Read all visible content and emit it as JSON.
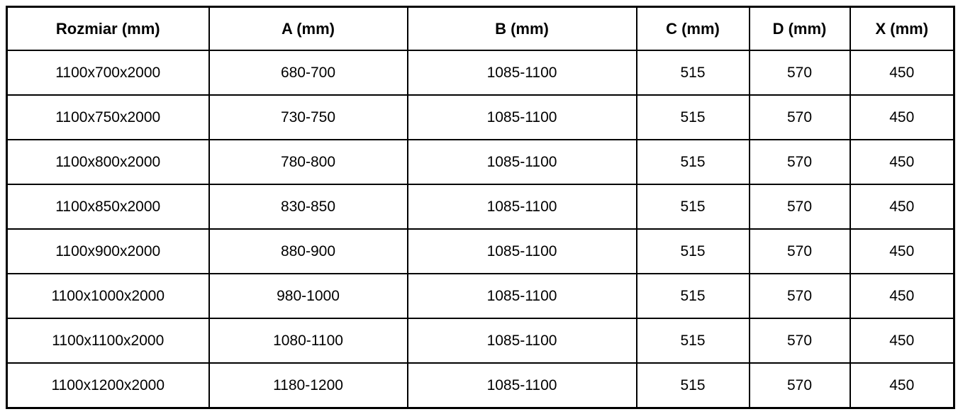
{
  "table": {
    "headers": [
      "Rozmiar (mm)",
      "A (mm)",
      "B (mm)",
      "C (mm)",
      "D (mm)",
      "X (mm)"
    ],
    "rows": [
      [
        "1100x700x2000",
        "680-700",
        "1085-1100",
        "515",
        "570",
        "450"
      ],
      [
        "1100x750x2000",
        "730-750",
        "1085-1100",
        "515",
        "570",
        "450"
      ],
      [
        "1100x800x2000",
        "780-800",
        "1085-1100",
        "515",
        "570",
        "450"
      ],
      [
        "1100x850x2000",
        "830-850",
        "1085-1100",
        "515",
        "570",
        "450"
      ],
      [
        "1100x900x2000",
        "880-900",
        "1085-1100",
        "515",
        "570",
        "450"
      ],
      [
        "1100x1000x2000",
        "980-1000",
        "1085-1100",
        "515",
        "570",
        "450"
      ],
      [
        "1100x1100x2000",
        "1080-1100",
        "1085-1100",
        "515",
        "570",
        "450"
      ],
      [
        "1100x1200x2000",
        "1180-1200",
        "1085-1100",
        "515",
        "570",
        "450"
      ]
    ],
    "colors": {
      "border": "#000000",
      "text": "#000000",
      "background": "#ffffff"
    }
  }
}
